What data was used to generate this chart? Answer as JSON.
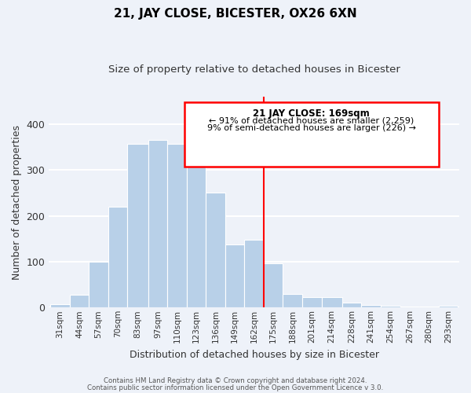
{
  "title": "21, JAY CLOSE, BICESTER, OX26 6XN",
  "subtitle": "Size of property relative to detached houses in Bicester",
  "xlabel": "Distribution of detached houses by size in Bicester",
  "ylabel": "Number of detached properties",
  "bar_labels": [
    "31sqm",
    "44sqm",
    "57sqm",
    "70sqm",
    "83sqm",
    "97sqm",
    "110sqm",
    "123sqm",
    "136sqm",
    "149sqm",
    "162sqm",
    "175sqm",
    "188sqm",
    "201sqm",
    "214sqm",
    "228sqm",
    "241sqm",
    "254sqm",
    "267sqm",
    "280sqm",
    "293sqm"
  ],
  "bar_values": [
    8,
    28,
    100,
    220,
    358,
    365,
    358,
    345,
    250,
    138,
    148,
    97,
    30,
    22,
    22,
    11,
    5,
    4,
    2,
    1,
    4
  ],
  "bar_color": "#b8d0e8",
  "reference_line_color": "red",
  "annotation_title": "21 JAY CLOSE: 169sqm",
  "annotation_line1": "← 91% of detached houses are smaller (2,259)",
  "annotation_line2": "9% of semi-detached houses are larger (226) →",
  "ylim": [
    0,
    460
  ],
  "footer_line1": "Contains HM Land Registry data © Crown copyright and database right 2024.",
  "footer_line2": "Contains public sector information licensed under the Open Government Licence v 3.0.",
  "background_color": "#eef2f9",
  "grid_color": "white",
  "bin_edges": [
    31,
    44,
    57,
    70,
    83,
    97,
    110,
    123,
    136,
    149,
    162,
    175,
    188,
    201,
    214,
    228,
    241,
    254,
    267,
    280,
    293,
    306
  ]
}
